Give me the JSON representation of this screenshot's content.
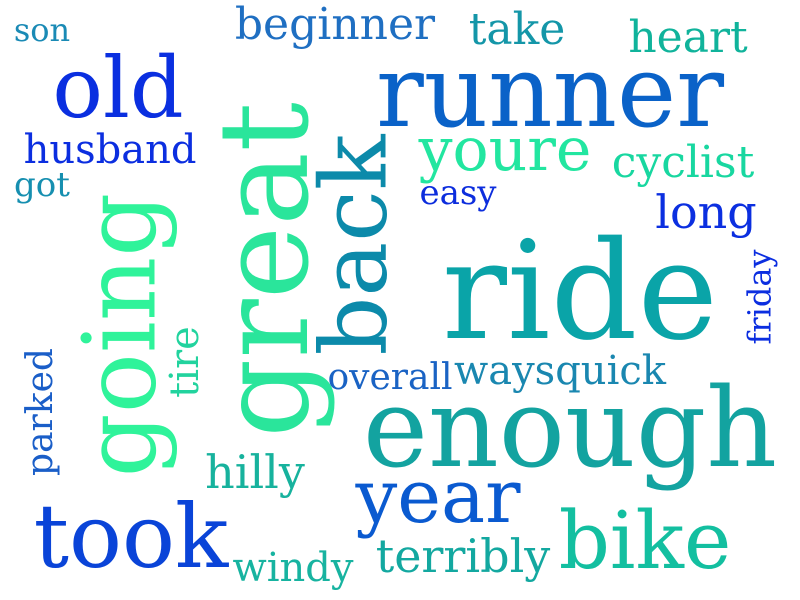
{
  "words": [
    {
      "id": "son",
      "text": "son",
      "color": "#1a8ab5",
      "rotated": false
    },
    {
      "id": "beginner",
      "text": "beginner",
      "color": "#1f6fc2",
      "rotated": false
    },
    {
      "id": "take",
      "text": "take",
      "color": "#1496a8",
      "rotated": false
    },
    {
      "id": "heart",
      "text": "heart",
      "color": "#10b39b",
      "rotated": false
    },
    {
      "id": "old",
      "text": "old",
      "color": "#0a2fe0",
      "rotated": false
    },
    {
      "id": "runner",
      "text": "runner",
      "color": "#0a62c8",
      "rotated": false
    },
    {
      "id": "husband",
      "text": "husband",
      "color": "#0b2ee0",
      "rotated": false
    },
    {
      "id": "youre",
      "text": "youre",
      "color": "#22e6a0",
      "rotated": false
    },
    {
      "id": "cyclist",
      "text": "cyclist",
      "color": "#18d7a0",
      "rotated": false
    },
    {
      "id": "got",
      "text": "got",
      "color": "#168fb0",
      "rotated": false
    },
    {
      "id": "easy",
      "text": "easy",
      "color": "#0c2ddd",
      "rotated": false
    },
    {
      "id": "long",
      "text": "long",
      "color": "#0b2fe0",
      "rotated": false
    },
    {
      "id": "great",
      "text": "great",
      "color": "#2ae59b",
      "rotated": true
    },
    {
      "id": "back",
      "text": "back",
      "color": "#0c8aaa",
      "rotated": true
    },
    {
      "id": "going",
      "text": "going",
      "color": "#2ff39a",
      "rotated": true
    },
    {
      "id": "ride",
      "text": "ride",
      "color": "#0aa4a8",
      "rotated": false
    },
    {
      "id": "friday",
      "text": "friday",
      "color": "#0b2ee0",
      "rotated": true
    },
    {
      "id": "tire",
      "text": "tire",
      "color": "#22d39e",
      "rotated": true
    },
    {
      "id": "overall",
      "text": "overall",
      "color": "#1a63c4",
      "rotated": false
    },
    {
      "id": "waysquick",
      "text": "waysquick",
      "color": "#1a87b0",
      "rotated": false
    },
    {
      "id": "parked",
      "text": "parked",
      "color": "#1a5ec8",
      "rotated": true
    },
    {
      "id": "enough",
      "text": "enough",
      "color": "#13a3a0",
      "rotated": false
    },
    {
      "id": "hilly",
      "text": "hilly",
      "color": "#17b29d",
      "rotated": false
    },
    {
      "id": "year",
      "text": "year",
      "color": "#0a5ad0",
      "rotated": false
    },
    {
      "id": "took",
      "text": "took",
      "color": "#0a44d8",
      "rotated": false
    },
    {
      "id": "bike",
      "text": "bike",
      "color": "#13bfa0",
      "rotated": false
    },
    {
      "id": "windy",
      "text": "windy",
      "color": "#17b3a0",
      "rotated": false
    },
    {
      "id": "terribly",
      "text": "terribly",
      "color": "#13a8a0",
      "rotated": false
    }
  ]
}
